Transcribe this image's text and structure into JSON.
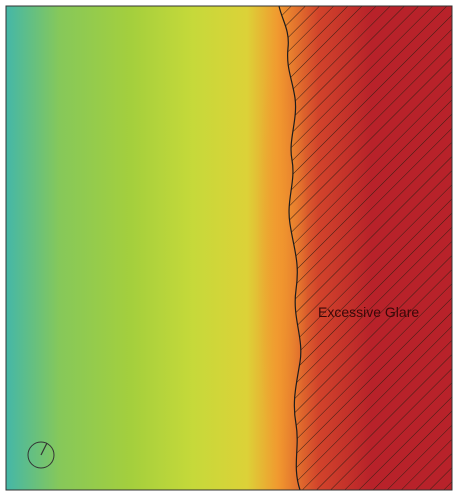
{
  "map": {
    "zone_label": "Excessive Glare",
    "colors": {
      "cyan": "#44b7a8",
      "green_cyan": "#86c85a",
      "green": "#a4cf3d",
      "yellow_green": "#c6d93a",
      "yellow": "#dcd238",
      "orange": "#f1992f",
      "red_orange": "#d2442b",
      "red": "#b8222a",
      "hatch": "#3a1f14",
      "boundary": "#1c1c1c",
      "frame": "#333333",
      "label": "#3a0808"
    },
    "icons": {
      "compass": "north-arrow-icon"
    }
  }
}
